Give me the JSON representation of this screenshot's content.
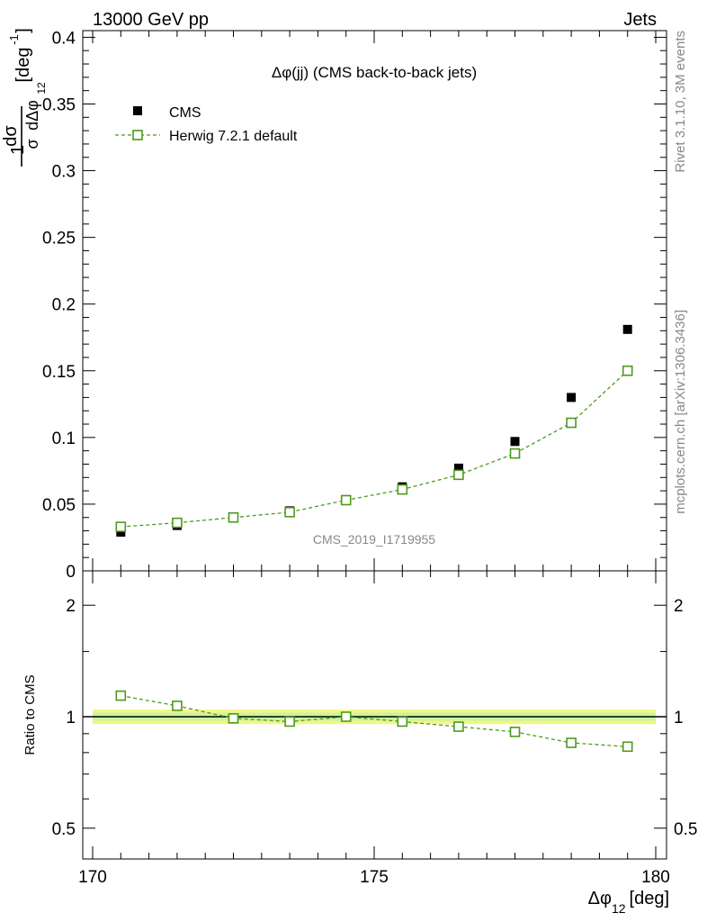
{
  "header": {
    "left": "13000 GeV pp",
    "right": "Jets"
  },
  "side_labels": {
    "rivet": "Rivet 3.1.10,  3M events",
    "mcplots": "mcplots.cern.ch [arXiv:1306.3436]"
  },
  "watermark": "CMS_2019_I1719955",
  "chart_data": [
    {
      "type": "scatter",
      "title": "Δφ(jj) (CMS back-to-back jets)",
      "ylabel_parts": {
        "frac_num": "1",
        "frac_num2": "dσ",
        "frac_den": "σ",
        "frac_den2": "dΔφ",
        "sub": "12",
        "unit": "[deg",
        "unit_sup": "-1",
        "unit_close": "]"
      },
      "x": [
        170.5,
        171.5,
        172.5,
        173.5,
        174.5,
        175.5,
        176.5,
        177.5,
        178.5,
        179.5
      ],
      "xlim": [
        170,
        180
      ],
      "ylim": [
        0,
        0.405
      ],
      "yticks": [
        0,
        0.05,
        0.1,
        0.15,
        0.2,
        0.25,
        0.3,
        0.35,
        0.4
      ],
      "ytick_labels": [
        "0",
        "0.05",
        "0.1",
        "0.15",
        "0.2",
        "0.25",
        "0.3",
        "0.35",
        "0.4"
      ],
      "legend_position": "top-left",
      "series": [
        {
          "name": "CMS",
          "style": "marker",
          "color": "#000000",
          "values": [
            0.029,
            0.034,
            0.04,
            0.045,
            0.053,
            0.063,
            0.077,
            0.097,
            0.13,
            0.181
          ]
        },
        {
          "name": "Herwig 7.2.1 default",
          "style": "dashed-open-square",
          "color": "#4d9a1c",
          "values": [
            0.033,
            0.036,
            0.04,
            0.044,
            0.053,
            0.061,
            0.072,
            0.088,
            0.111,
            0.15
          ]
        }
      ]
    },
    {
      "type": "line",
      "ylabel": "Ratio to CMS",
      "xlabel_parts": {
        "main": "Δφ",
        "sub": "12",
        "unit": "[deg]"
      },
      "x": [
        170.5,
        171.5,
        172.5,
        173.5,
        174.5,
        175.5,
        176.5,
        177.5,
        178.5,
        179.5
      ],
      "xlim": [
        170,
        180
      ],
      "xticks": [
        170,
        175,
        180
      ],
      "xtick_labels": [
        "170",
        "175",
        "180"
      ],
      "ylim": [
        0.4,
        2.4
      ],
      "yscale": "log",
      "yticks": [
        0.5,
        1,
        2
      ],
      "ytick_labels": [
        "0.5",
        "1",
        "2"
      ],
      "band_colors": [
        "#f5f582",
        "#c8f5a0"
      ],
      "series": [
        {
          "name": "Herwig 7.2.1 default",
          "color": "#4d9a1c",
          "values": [
            1.14,
            1.07,
            0.99,
            0.97,
            1.0,
            0.97,
            0.94,
            0.91,
            0.85,
            0.83
          ]
        }
      ]
    }
  ]
}
